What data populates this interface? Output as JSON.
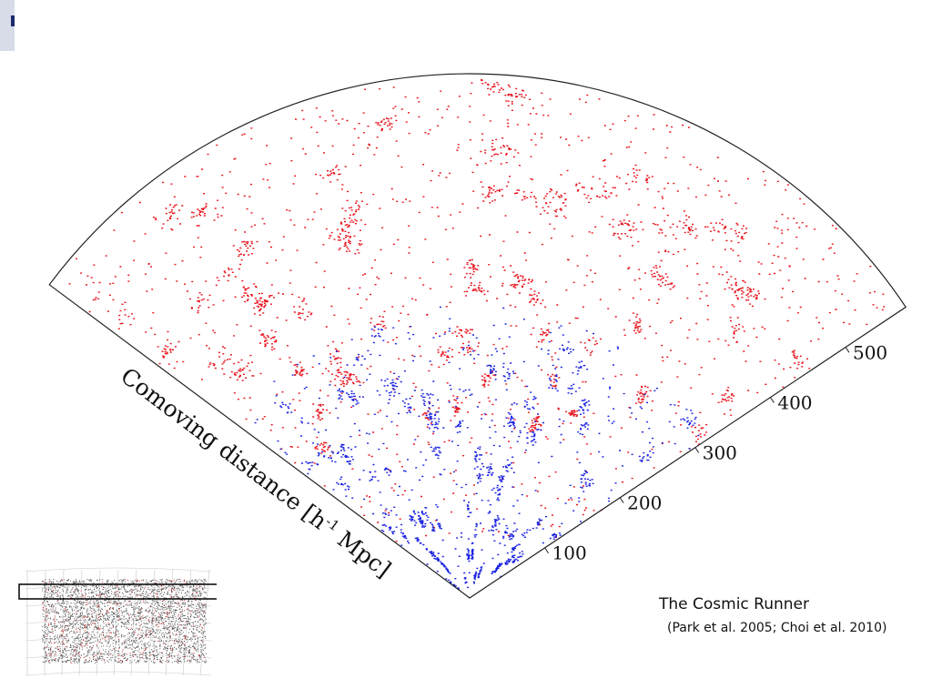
{
  "chart_data": {
    "type": "scatter",
    "subtype": "redshift-survey cone diagram",
    "title": "The Cosmic Runner",
    "subtitle": "(Park et al. 2005; Choi et al. 2010)",
    "radial_axis_label": "Comoving distance [h",
    "radial_axis_label_sup": "-1",
    "radial_axis_label_tail": " Mpc]",
    "radial_ticks": [
      {
        "value": 100,
        "label": "100"
      },
      {
        "value": 200,
        "label": "200"
      },
      {
        "value": 300,
        "label": "300"
      },
      {
        "value": 400,
        "label": "400"
      },
      {
        "value": 500,
        "label": "500"
      }
    ],
    "radial_range": [
      0,
      580
    ],
    "series": [
      {
        "color": "#e8141e",
        "distribution": "extends to the outer edge"
      },
      {
        "color": "#1a22e0",
        "distribution": "concentrated below about 300"
      }
    ],
    "grid": false,
    "legend": "none"
  },
  "colors": {
    "corner_mark": "#1f2a6b",
    "outline": "#222222"
  }
}
